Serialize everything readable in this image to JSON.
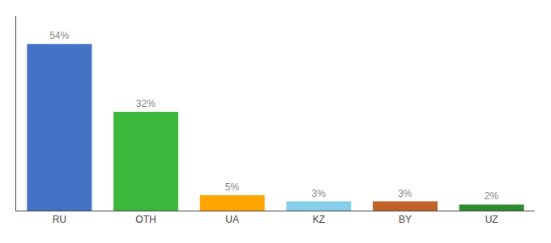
{
  "chart_data": {
    "type": "bar",
    "categories": [
      "RU",
      "OTH",
      "UA",
      "KZ",
      "BY",
      "UZ"
    ],
    "values": [
      54,
      32,
      5,
      3,
      3,
      2
    ],
    "value_labels": [
      "54%",
      "32%",
      "5%",
      "3%",
      "3%",
      "2%"
    ],
    "data_labels": true,
    "colors": [
      "#4472C4",
      "#3CB93C",
      "#FFA500",
      "#87CEEB",
      "#C0622A",
      "#2E8B2E"
    ],
    "ylim": [
      0,
      63
    ],
    "grid": false,
    "tick_labels": "x"
  }
}
